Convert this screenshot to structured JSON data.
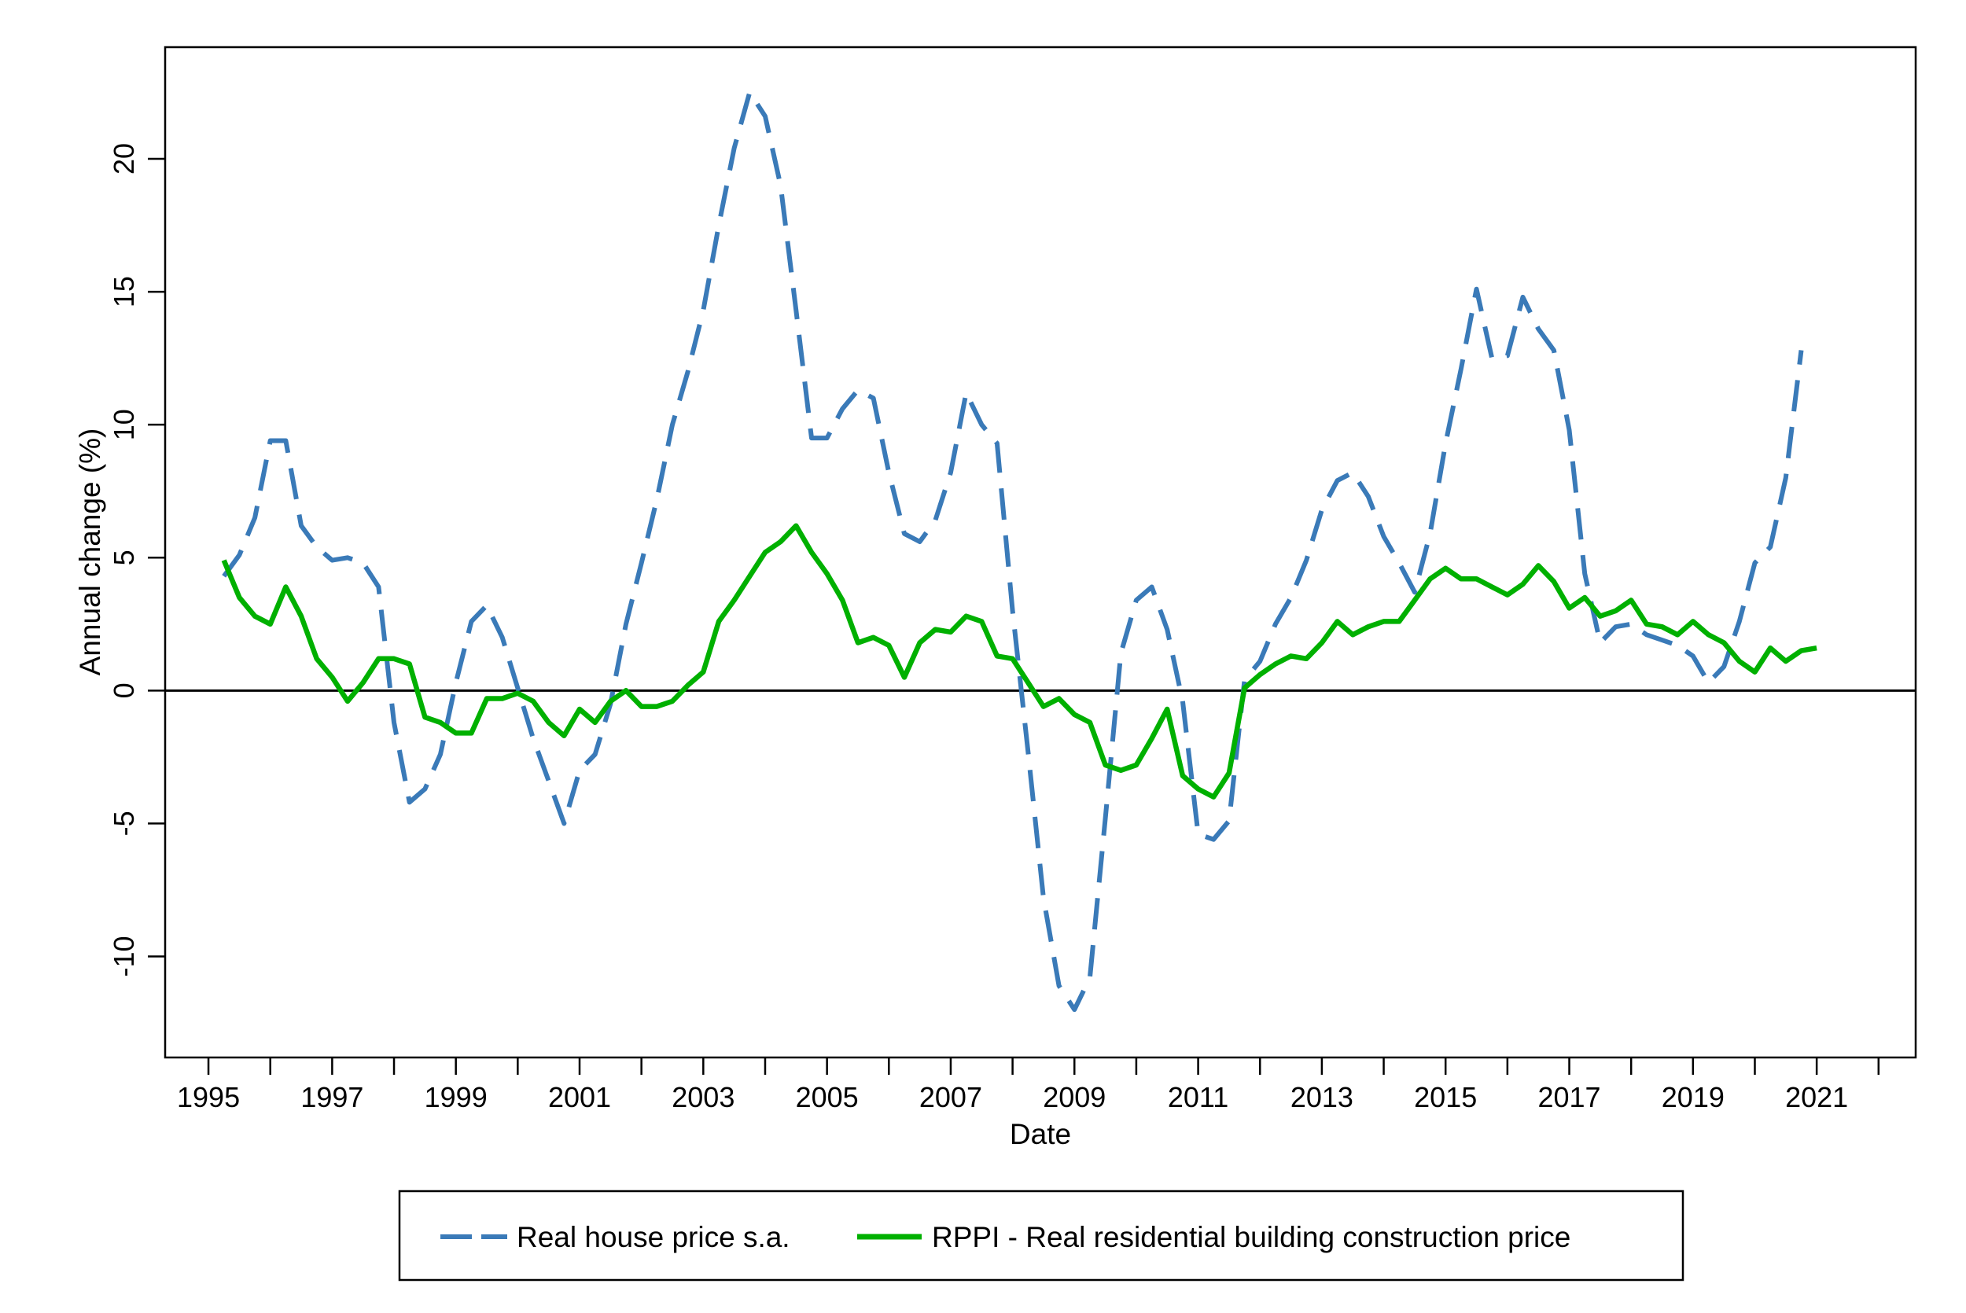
{
  "chart_data": {
    "type": "line",
    "title": "",
    "xlabel": "Date",
    "ylabel": "Annual change (%)",
    "xlim": [
      1994.3,
      2022.6
    ],
    "ylim": [
      -13.8,
      24.2
    ],
    "x_ticks": [
      1995,
      1997,
      1999,
      2001,
      2003,
      2005,
      2007,
      2009,
      2011,
      2013,
      2015,
      2017,
      2019,
      2021
    ],
    "x_tick_labels": [
      "1995",
      "1997",
      "1999",
      "2001",
      "2003",
      "2005",
      "2007",
      "2009",
      "2011",
      "2013",
      "2015",
      "2017",
      "2019",
      "2021"
    ],
    "x_minor_ticks": [
      1996,
      1998,
      2000,
      2002,
      2004,
      2006,
      2008,
      2010,
      2012,
      2014,
      2016,
      2018,
      2020,
      2022
    ],
    "y_ticks": [
      -10,
      -5,
      0,
      5,
      10,
      15,
      20
    ],
    "y_tick_labels": [
      "-10",
      "-5",
      "0",
      "5",
      "10",
      "15",
      "20"
    ],
    "reference_line": 0,
    "grid": false,
    "legend_position": "bottom",
    "series": [
      {
        "name": "Real house price s.a.",
        "color": "#3a7ab8",
        "style": "dashed",
        "x": [
          1995.25,
          1995.5,
          1995.75,
          1996.0,
          1996.25,
          1996.5,
          1996.75,
          1997.0,
          1997.25,
          1997.5,
          1997.75,
          1998.0,
          1998.25,
          1998.5,
          1998.75,
          1999.0,
          1999.25,
          1999.5,
          1999.75,
          2000.0,
          2000.25,
          2000.5,
          2000.75,
          2001.0,
          2001.25,
          2001.5,
          2001.75,
          2002.0,
          2002.25,
          2002.5,
          2002.75,
          2003.0,
          2003.25,
          2003.5,
          2003.75,
          2004.0,
          2004.25,
          2004.5,
          2004.75,
          2005.0,
          2005.25,
          2005.5,
          2005.75,
          2006.0,
          2006.25,
          2006.5,
          2006.75,
          2007.0,
          2007.25,
          2007.5,
          2007.75,
          2008.0,
          2008.25,
          2008.5,
          2008.75,
          2009.0,
          2009.25,
          2009.5,
          2009.75,
          2010.0,
          2010.25,
          2010.5,
          2010.75,
          2011.0,
          2011.25,
          2011.5,
          2011.75,
          2012.0,
          2012.25,
          2012.5,
          2012.75,
          2013.0,
          2013.25,
          2013.5,
          2013.75,
          2014.0,
          2014.25,
          2014.5,
          2014.75,
          2015.0,
          2015.25,
          2015.5,
          2015.75,
          2016.0,
          2016.25,
          2016.5,
          2016.75,
          2017.0,
          2017.25,
          2017.5,
          2017.75,
          2018.0,
          2018.25,
          2018.5,
          2018.75,
          2019.0,
          2019.25,
          2019.5,
          2019.75,
          2020.0,
          2020.25,
          2020.5,
          2020.75
        ],
        "values": [
          4.3,
          5.1,
          6.5,
          9.4,
          9.4,
          6.2,
          5.4,
          4.9,
          5.0,
          4.8,
          3.9,
          -1.2,
          -4.2,
          -3.7,
          -2.4,
          0.3,
          2.6,
          3.2,
          2.0,
          0.1,
          -1.8,
          -3.4,
          -5.0,
          -3.0,
          -2.4,
          -0.5,
          2.5,
          4.8,
          7.2,
          10.0,
          12.0,
          14.3,
          17.5,
          20.4,
          22.5,
          21.6,
          19.0,
          14.3,
          9.5,
          9.5,
          10.6,
          11.3,
          11.0,
          8.2,
          5.9,
          5.6,
          6.4,
          8.2,
          11.2,
          10.0,
          9.3,
          3.0,
          -2.3,
          -7.8,
          -11.1,
          -12.0,
          -10.8,
          -4.8,
          1.4,
          3.4,
          3.9,
          2.3,
          -0.4,
          -5.4,
          -5.6,
          -4.9,
          0.4,
          1.1,
          2.5,
          3.5,
          4.9,
          6.8,
          7.9,
          8.2,
          7.3,
          5.8,
          4.8,
          3.7,
          5.9,
          9.3,
          12.1,
          15.1,
          12.5,
          12.6,
          14.8,
          13.6,
          12.8,
          9.8,
          4.4,
          1.8,
          2.4,
          2.5,
          2.1,
          1.9,
          1.7,
          1.3,
          0.3,
          0.9,
          2.6,
          4.8,
          5.4,
          8.0,
          12.8
        ]
      },
      {
        "name": "RPPI - Real residential building construction price",
        "color": "#00b000",
        "style": "solid",
        "x": [
          1995.25,
          1995.5,
          1995.75,
          1996.0,
          1996.25,
          1996.5,
          1996.75,
          1997.0,
          1997.25,
          1997.5,
          1997.75,
          1998.0,
          1998.25,
          1998.5,
          1998.75,
          1999.0,
          1999.25,
          1999.5,
          1999.75,
          2000.0,
          2000.25,
          2000.5,
          2000.75,
          2001.0,
          2001.25,
          2001.5,
          2001.75,
          2002.0,
          2002.25,
          2002.5,
          2002.75,
          2003.0,
          2003.25,
          2003.5,
          2003.75,
          2004.0,
          2004.25,
          2004.5,
          2004.75,
          2005.0,
          2005.25,
          2005.5,
          2005.75,
          2006.0,
          2006.25,
          2006.5,
          2006.75,
          2007.0,
          2007.25,
          2007.5,
          2007.75,
          2008.0,
          2008.25,
          2008.5,
          2008.75,
          2009.0,
          2009.25,
          2009.5,
          2009.75,
          2010.0,
          2010.25,
          2010.5,
          2010.75,
          2011.0,
          2011.25,
          2011.5,
          2011.75,
          2012.0,
          2012.25,
          2012.5,
          2012.75,
          2013.0,
          2013.25,
          2013.5,
          2013.75,
          2014.0,
          2014.25,
          2014.5,
          2014.75,
          2015.0,
          2015.25,
          2015.5,
          2015.75,
          2016.0,
          2016.25,
          2016.5,
          2016.75,
          2017.0,
          2017.25,
          2017.5,
          2017.75,
          2018.0,
          2018.25,
          2018.5,
          2018.75,
          2019.0,
          2019.25,
          2019.5,
          2019.75,
          2020.0,
          2020.25,
          2020.5,
          2020.75,
          2021.0
        ],
        "values": [
          4.9,
          3.5,
          2.8,
          2.5,
          3.9,
          2.8,
          1.2,
          0.5,
          -0.4,
          0.3,
          1.2,
          1.2,
          1.0,
          -1.0,
          -1.2,
          -1.6,
          -1.6,
          -0.3,
          -0.3,
          -0.1,
          -0.4,
          -1.2,
          -1.7,
          -0.7,
          -1.2,
          -0.4,
          0.0,
          -0.6,
          -0.6,
          -0.4,
          0.2,
          0.7,
          2.6,
          3.4,
          4.3,
          5.2,
          5.6,
          6.2,
          5.2,
          4.4,
          3.4,
          1.8,
          2.0,
          1.7,
          0.5,
          1.8,
          2.3,
          2.2,
          2.8,
          2.6,
          1.3,
          1.2,
          0.3,
          -0.6,
          -0.3,
          -0.9,
          -1.2,
          -2.8,
          -3.0,
          -2.8,
          -1.8,
          -0.7,
          -3.2,
          -3.7,
          -4.0,
          -3.1,
          0.1,
          0.6,
          1.0,
          1.3,
          1.2,
          1.8,
          2.6,
          2.1,
          2.4,
          2.6,
          2.6,
          3.4,
          4.2,
          4.6,
          4.2,
          4.2,
          3.9,
          3.6,
          4.0,
          4.7,
          4.1,
          3.1,
          3.5,
          2.8,
          3.0,
          3.4,
          2.5,
          2.4,
          2.1,
          2.6,
          2.1,
          1.8,
          1.1,
          0.7,
          1.6,
          1.1,
          1.5,
          1.6
        ]
      }
    ]
  }
}
